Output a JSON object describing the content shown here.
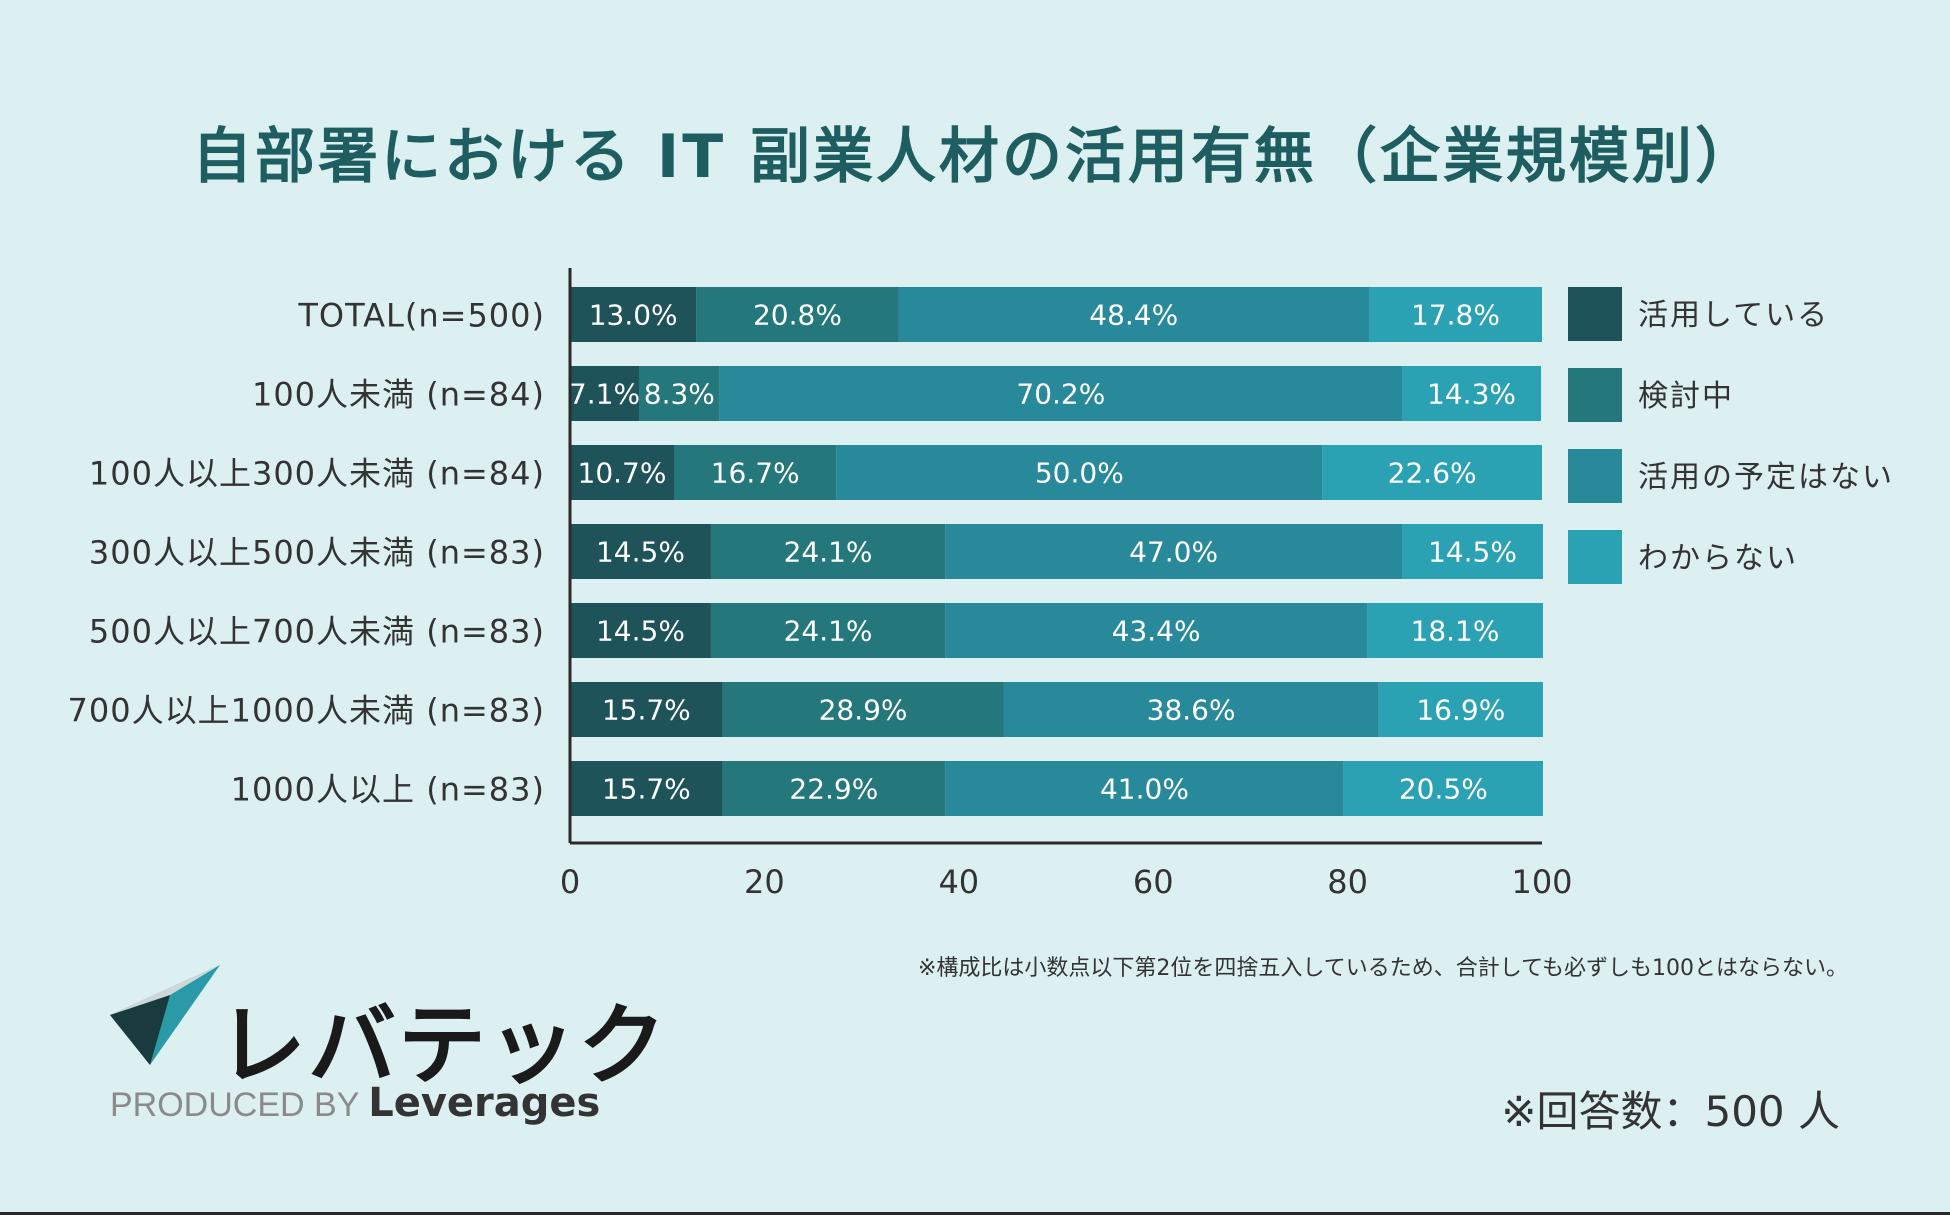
{
  "title": "自部署における IT 副業人材の活用有無（企業規模別）",
  "chart_data": {
    "type": "bar",
    "orientation": "horizontal",
    "stacked": true,
    "categories": [
      "TOTAL(n=500)",
      "100人未満 (n=84)",
      "100人以上300人未満 (n=84)",
      "300人以上500人未満 (n=83)",
      "500人以上700人未満 (n=83)",
      "700人以上1000人未満 (n=83)",
      "1000人以上 (n=83)"
    ],
    "series": [
      {
        "name": "活用している",
        "color": "#1e5459",
        "values": [
          13.0,
          7.1,
          10.7,
          14.5,
          14.5,
          15.7,
          15.7
        ]
      },
      {
        "name": "検討中",
        "color": "#24777a",
        "values": [
          20.8,
          8.3,
          16.7,
          24.1,
          24.1,
          28.9,
          22.9
        ]
      },
      {
        "name": "活用の予定はない",
        "color": "#28899a",
        "values": [
          48.4,
          70.2,
          50.0,
          47.0,
          43.4,
          38.6,
          41.0
        ]
      },
      {
        "name": "わからない",
        "color": "#2aa2b4",
        "values": [
          17.8,
          14.3,
          22.6,
          14.5,
          18.1,
          16.9,
          20.5
        ]
      }
    ],
    "xlim": [
      0,
      100
    ],
    "xticks": [
      0,
      20,
      40,
      60,
      80,
      100
    ],
    "value_suffix": "%",
    "legend_position": "right"
  },
  "note": "※構成比は小数点以下第2位を四捨五入しているため、合計しても必ずしも100とはならない。",
  "respondents": "※回答数：500 人",
  "brand": "レバテック",
  "produced_by": "PRODUCED BY",
  "company": "Leverages"
}
